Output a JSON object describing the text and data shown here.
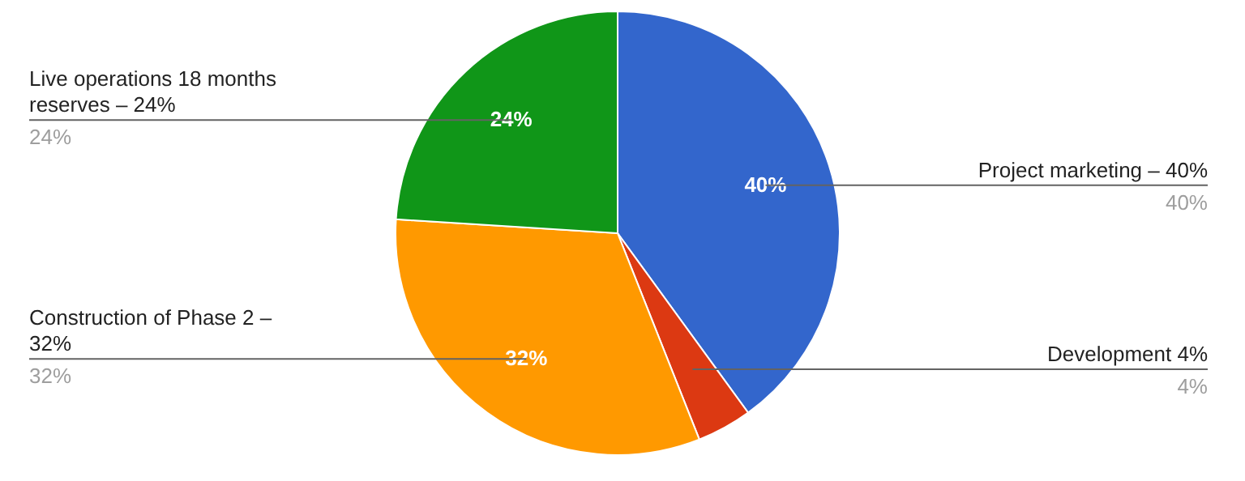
{
  "chart_data": {
    "type": "pie",
    "categories": [
      "Project marketing – 40%",
      "Development 4%",
      "Construction of Phase 2 – 32%",
      "Live operations 18 months reserves – 24%"
    ],
    "values": [
      40,
      4,
      32,
      24
    ],
    "colors": [
      "#3366cc",
      "#dc3912",
      "#ff9900",
      "#109618"
    ],
    "value_labels": [
      "40%",
      "4%",
      "32%",
      "24%"
    ]
  }
}
